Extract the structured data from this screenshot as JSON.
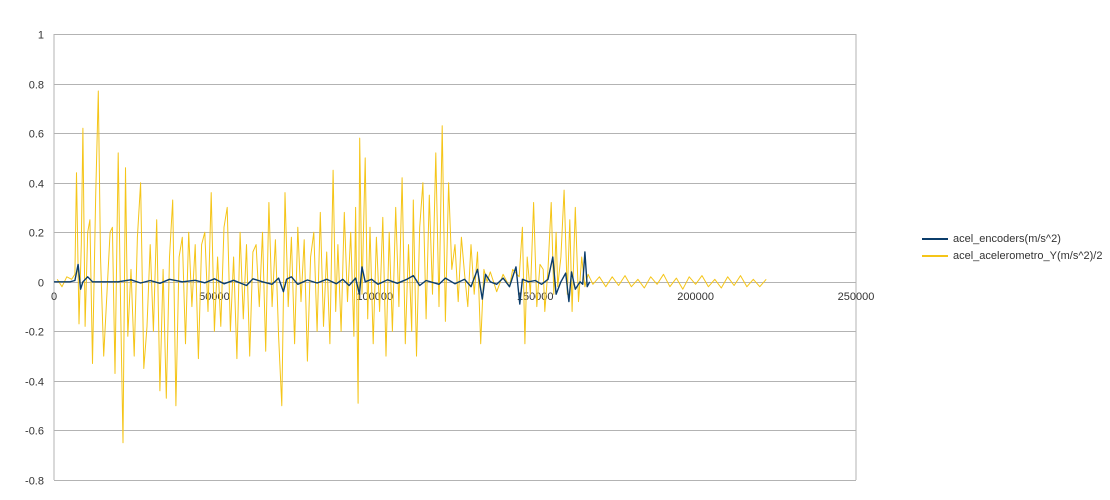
{
  "chart_data": {
    "type": "line",
    "title": "",
    "xlabel": "",
    "ylabel": "",
    "xlim": [
      0,
      250000
    ],
    "ylim": [
      -0.8,
      1
    ],
    "x_ticks": [
      0,
      50000,
      100000,
      150000,
      200000,
      250000
    ],
    "y_ticks": [
      1,
      0.8,
      0.6,
      0.4,
      0.2,
      0,
      -0.2,
      -0.4,
      -0.6,
      -0.8
    ],
    "grid": "horizontal",
    "legend_position": "right",
    "series": [
      {
        "name": "acel_encoders(m/s^2)",
        "color": "#0b3d6b",
        "points": [
          [
            0,
            0
          ],
          [
            5000,
            0
          ],
          [
            6500,
            0.005
          ],
          [
            7500,
            0.07
          ],
          [
            8300,
            -0.03
          ],
          [
            9000,
            0
          ],
          [
            10500,
            0.02
          ],
          [
            12000,
            0
          ],
          [
            20000,
            0
          ],
          [
            24000,
            0.008
          ],
          [
            27000,
            -0.005
          ],
          [
            30000,
            0.005
          ],
          [
            33000,
            -0.006
          ],
          [
            36000,
            0.01
          ],
          [
            40000,
            0
          ],
          [
            44000,
            0.006
          ],
          [
            47000,
            -0.004
          ],
          [
            50000,
            0.012
          ],
          [
            53000,
            -0.008
          ],
          [
            56000,
            0.006
          ],
          [
            60000,
            -0.015
          ],
          [
            62000,
            0.012
          ],
          [
            65000,
            0
          ],
          [
            68000,
            -0.01
          ],
          [
            70000,
            0.015
          ],
          [
            71500,
            -0.04
          ],
          [
            72500,
            0.01
          ],
          [
            74000,
            0.02
          ],
          [
            76000,
            -0.01
          ],
          [
            79000,
            0.007
          ],
          [
            82000,
            -0.005
          ],
          [
            85000,
            0.01
          ],
          [
            88000,
            -0.008
          ],
          [
            90000,
            0.01
          ],
          [
            92000,
            -0.015
          ],
          [
            94000,
            0.015
          ],
          [
            95200,
            -0.05
          ],
          [
            96000,
            0.06
          ],
          [
            97000,
            0
          ],
          [
            99000,
            0.01
          ],
          [
            101000,
            -0.01
          ],
          [
            104000,
            0.008
          ],
          [
            107000,
            -0.006
          ],
          [
            110000,
            0.01
          ],
          [
            112000,
            0.025
          ],
          [
            114000,
            -0.015
          ],
          [
            116000,
            0.005
          ],
          [
            120000,
            -0.01
          ],
          [
            122000,
            0.015
          ],
          [
            125000,
            -0.008
          ],
          [
            128000,
            0.01
          ],
          [
            130000,
            -0.02
          ],
          [
            132000,
            0.05
          ],
          [
            133500,
            -0.07
          ],
          [
            134500,
            0.03
          ],
          [
            136000,
            0
          ],
          [
            138000,
            -0.01
          ],
          [
            140000,
            0.015
          ],
          [
            142000,
            -0.02
          ],
          [
            144000,
            0.06
          ],
          [
            145200,
            -0.09
          ],
          [
            146000,
            0.01
          ],
          [
            148000,
            0
          ],
          [
            150000,
            0.005
          ],
          [
            152000,
            -0.01
          ],
          [
            154000,
            0.01
          ],
          [
            155500,
            0.1
          ],
          [
            156500,
            -0.05
          ],
          [
            158000,
            0
          ],
          [
            159500,
            0.035
          ],
          [
            160500,
            -0.08
          ],
          [
            161300,
            0.04
          ],
          [
            162500,
            -0.03
          ],
          [
            164000,
            0
          ],
          [
            164800,
            -0.01
          ],
          [
            165500,
            0.12
          ],
          [
            166200,
            -0.02
          ],
          [
            167000,
            0
          ]
        ]
      },
      {
        "name": "acel_acelerometro_Y(m/s^2)/2",
        "color": "#f5c518",
        "points": [
          [
            1000,
            0.01
          ],
          [
            2500,
            -0.02
          ],
          [
            4000,
            0.02
          ],
          [
            5500,
            0.01
          ],
          [
            6500,
            0.03
          ],
          [
            7000,
            0.44
          ],
          [
            7800,
            -0.17
          ],
          [
            8500,
            0.15
          ],
          [
            9000,
            0.62
          ],
          [
            9700,
            -0.18
          ],
          [
            10500,
            0.2
          ],
          [
            11200,
            0.25
          ],
          [
            12000,
            -0.33
          ],
          [
            13000,
            0.35
          ],
          [
            13800,
            0.77
          ],
          [
            14500,
            0.1
          ],
          [
            15500,
            -0.3
          ],
          [
            16500,
            -0.05
          ],
          [
            17500,
            0.2
          ],
          [
            18200,
            0.22
          ],
          [
            19000,
            -0.37
          ],
          [
            20000,
            0.52
          ],
          [
            20800,
            -0.12
          ],
          [
            21500,
            -0.65
          ],
          [
            22300,
            0.46
          ],
          [
            23000,
            -0.22
          ],
          [
            24000,
            0.05
          ],
          [
            25000,
            -0.3
          ],
          [
            26000,
            0.18
          ],
          [
            27000,
            0.4
          ],
          [
            28000,
            -0.35
          ],
          [
            29000,
            -0.18
          ],
          [
            30000,
            0.15
          ],
          [
            31000,
            -0.2
          ],
          [
            32000,
            0.25
          ],
          [
            33000,
            -0.44
          ],
          [
            34000,
            0.05
          ],
          [
            35000,
            -0.47
          ],
          [
            36000,
            0.1
          ],
          [
            37000,
            0.33
          ],
          [
            38000,
            -0.5
          ],
          [
            39000,
            0.1
          ],
          [
            40000,
            0.18
          ],
          [
            41000,
            -0.25
          ],
          [
            42000,
            0.2
          ],
          [
            43000,
            -0.1
          ],
          [
            44000,
            0.15
          ],
          [
            45000,
            -0.31
          ],
          [
            46000,
            0.15
          ],
          [
            47000,
            0.2
          ],
          [
            48000,
            -0.12
          ],
          [
            49000,
            0.36
          ],
          [
            50000,
            -0.2
          ],
          [
            51000,
            0.1
          ],
          [
            52000,
            -0.18
          ],
          [
            53000,
            0.22
          ],
          [
            54000,
            0.3
          ],
          [
            55000,
            -0.2
          ],
          [
            56000,
            0.1
          ],
          [
            57000,
            -0.31
          ],
          [
            58000,
            0.2
          ],
          [
            59000,
            -0.15
          ],
          [
            60000,
            0.15
          ],
          [
            61000,
            -0.3
          ],
          [
            62000,
            0.12
          ],
          [
            63000,
            0.15
          ],
          [
            64000,
            -0.1
          ],
          [
            65000,
            0.2
          ],
          [
            66000,
            -0.28
          ],
          [
            67000,
            0.32
          ],
          [
            68000,
            -0.1
          ],
          [
            69000,
            0.17
          ],
          [
            70000,
            -0.22
          ],
          [
            71000,
            -0.5
          ],
          [
            72000,
            0.36
          ],
          [
            73000,
            -0.1
          ],
          [
            74000,
            0.18
          ],
          [
            75000,
            -0.25
          ],
          [
            76000,
            0.22
          ],
          [
            77000,
            -0.08
          ],
          [
            78000,
            0.17
          ],
          [
            79000,
            -0.32
          ],
          [
            80000,
            0.1
          ],
          [
            81000,
            0.2
          ],
          [
            82000,
            -0.2
          ],
          [
            83000,
            0.28
          ],
          [
            84000,
            -0.18
          ],
          [
            85000,
            0.12
          ],
          [
            86000,
            -0.25
          ],
          [
            87000,
            0.45
          ],
          [
            87800,
            -0.12
          ],
          [
            88500,
            0.15
          ],
          [
            89500,
            -0.2
          ],
          [
            90500,
            0.28
          ],
          [
            91500,
            -0.08
          ],
          [
            92500,
            0.2
          ],
          [
            93500,
            -0.22
          ],
          [
            94000,
            0.3
          ],
          [
            94800,
            -0.49
          ],
          [
            95300,
            0.58
          ],
          [
            96000,
            -0.05
          ],
          [
            97000,
            0.5
          ],
          [
            97800,
            -0.15
          ],
          [
            98500,
            0.22
          ],
          [
            99500,
            -0.25
          ],
          [
            100500,
            0.18
          ],
          [
            101500,
            -0.12
          ],
          [
            102500,
            0.26
          ],
          [
            103500,
            -0.3
          ],
          [
            104500,
            0.2
          ],
          [
            105500,
            -0.2
          ],
          [
            106500,
            0.3
          ],
          [
            107500,
            -0.1
          ],
          [
            108500,
            0.42
          ],
          [
            109500,
            -0.25
          ],
          [
            110500,
            0.15
          ],
          [
            111500,
            -0.2
          ],
          [
            112000,
            0.33
          ],
          [
            113000,
            -0.3
          ],
          [
            114000,
            0.22
          ],
          [
            115000,
            0.4
          ],
          [
            116000,
            -0.15
          ],
          [
            117000,
            0.35
          ],
          [
            118000,
            -0.05
          ],
          [
            119000,
            0.52
          ],
          [
            120000,
            -0.1
          ],
          [
            121000,
            0.63
          ],
          [
            122000,
            -0.16
          ],
          [
            123000,
            0.4
          ],
          [
            124000,
            0.05
          ],
          [
            125000,
            0.15
          ],
          [
            126000,
            -0.08
          ],
          [
            127000,
            0.18
          ],
          [
            128000,
            0.03
          ],
          [
            129000,
            -0.1
          ],
          [
            130000,
            0.15
          ],
          [
            131000,
            -0.05
          ],
          [
            132000,
            0.12
          ],
          [
            133000,
            -0.25
          ],
          [
            134000,
            0.05
          ],
          [
            135000,
            0
          ],
          [
            136000,
            0.04
          ],
          [
            138000,
            -0.04
          ],
          [
            140000,
            0.03
          ],
          [
            142000,
            -0.02
          ],
          [
            143000,
            0.05
          ],
          [
            145000,
            0.02
          ],
          [
            146000,
            0.22
          ],
          [
            146800,
            -0.25
          ],
          [
            147500,
            0.1
          ],
          [
            148500,
            -0.05
          ],
          [
            149500,
            0.32
          ],
          [
            150500,
            -0.1
          ],
          [
            151500,
            0.07
          ],
          [
            152500,
            0.05
          ],
          [
            153000,
            -0.12
          ],
          [
            154000,
            0.05
          ],
          [
            155000,
            0.32
          ],
          [
            155800,
            -0.05
          ],
          [
            156500,
            0.2
          ],
          [
            157000,
            -0.02
          ],
          [
            158000,
            0.1
          ],
          [
            159000,
            0.37
          ],
          [
            160000,
            -0.05
          ],
          [
            160800,
            0.25
          ],
          [
            161500,
            -0.12
          ],
          [
            162500,
            0.3
          ],
          [
            163500,
            -0.08
          ],
          [
            164500,
            0.1
          ],
          [
            165500,
            -0.02
          ],
          [
            166500,
            0.03
          ],
          [
            168000,
            -0.01
          ],
          [
            170000,
            0.02
          ],
          [
            172000,
            -0.02
          ],
          [
            174000,
            0.02
          ],
          [
            176000,
            -0.015
          ],
          [
            178000,
            0.025
          ],
          [
            180000,
            -0.02
          ],
          [
            182000,
            0.01
          ],
          [
            184000,
            -0.025
          ],
          [
            186000,
            0.02
          ],
          [
            188000,
            -0.01
          ],
          [
            190000,
            0.03
          ],
          [
            192000,
            -0.02
          ],
          [
            194000,
            0.015
          ],
          [
            196000,
            -0.03
          ],
          [
            198000,
            0.02
          ],
          [
            200000,
            -0.01
          ],
          [
            202000,
            0.025
          ],
          [
            204000,
            -0.02
          ],
          [
            206000,
            0.01
          ],
          [
            208000,
            -0.025
          ],
          [
            210000,
            0.02
          ],
          [
            212000,
            -0.015
          ],
          [
            214000,
            0.025
          ],
          [
            216000,
            -0.02
          ],
          [
            218000,
            0.01
          ],
          [
            220000,
            -0.02
          ],
          [
            222000,
            0.01
          ]
        ]
      }
    ]
  }
}
